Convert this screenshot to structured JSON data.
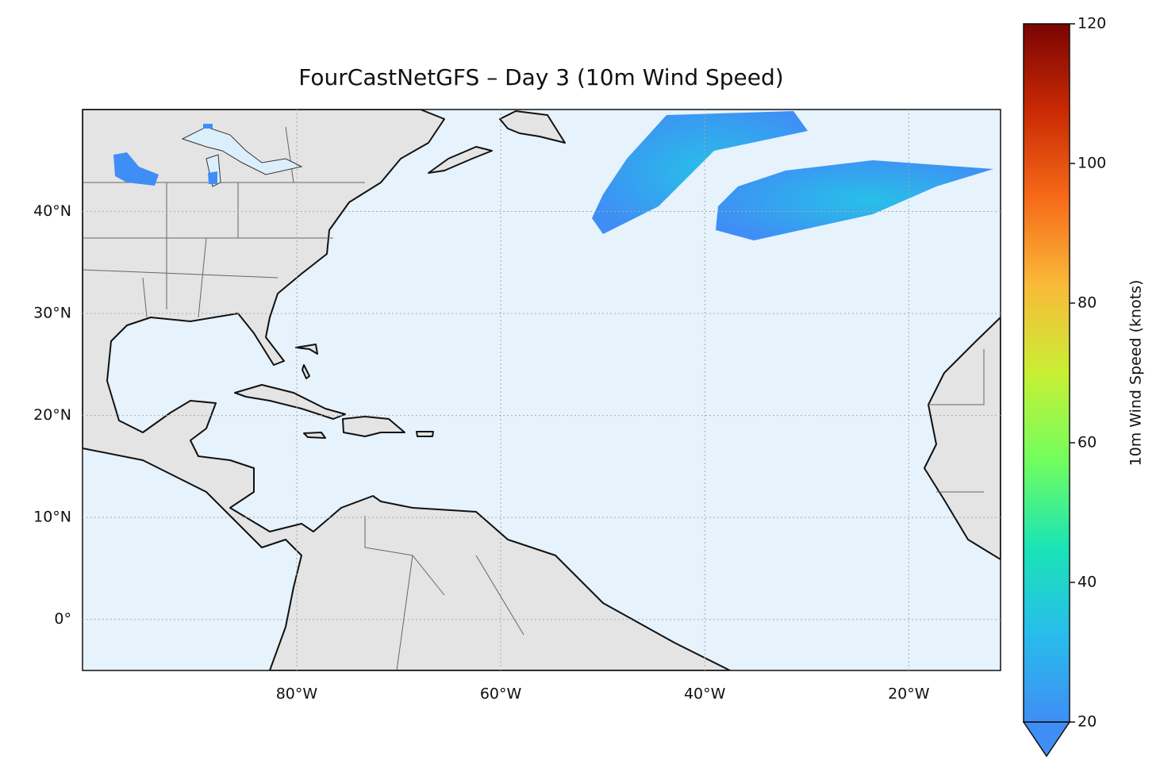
{
  "chart_data": {
    "type": "map",
    "title": "FourCastNetGFS – Day 3 (10m Wind Speed)",
    "xlim": [
      -101,
      -11
    ],
    "ylim": [
      -5,
      50
    ],
    "xticks": [
      {
        "value": -80,
        "label": "80°W"
      },
      {
        "value": -60,
        "label": "60°W"
      },
      {
        "value": -40,
        "label": "40°W"
      },
      {
        "value": -20,
        "label": "20°W"
      }
    ],
    "yticks": [
      {
        "value": 0,
        "label": "0°"
      },
      {
        "value": 10,
        "label": "10°N"
      },
      {
        "value": 20,
        "label": "20°N"
      },
      {
        "value": 30,
        "label": "30°N"
      },
      {
        "value": 40,
        "label": "40°N"
      }
    ],
    "grid": true,
    "colorbar": {
      "label": "10m Wind Speed (knots)",
      "lim": [
        20,
        120
      ],
      "ticks": [
        20,
        40,
        60,
        80,
        100,
        120
      ],
      "colors": [
        "#3f8ef5",
        "#28bceb",
        "#1ae4b6",
        "#72fe5e",
        "#c8ef34",
        "#faba39",
        "#f66b19",
        "#ca2a04",
        "#7a0403"
      ],
      "extend": "min"
    }
  }
}
